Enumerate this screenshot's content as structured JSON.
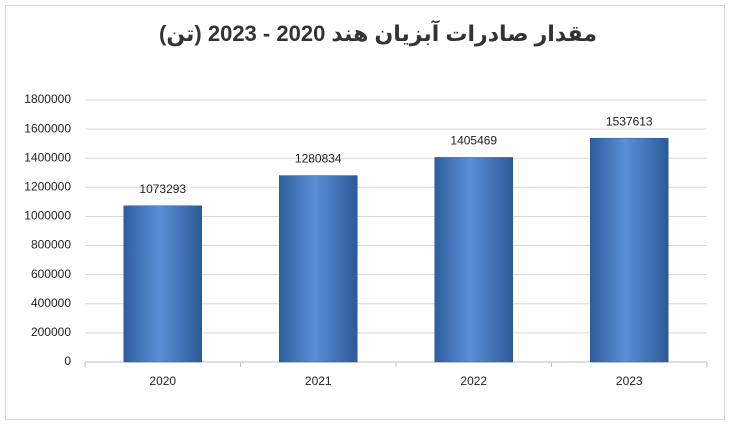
{
  "chart_data": {
    "type": "bar",
    "title": "مقدار صادرات آبزیان هند 2020 - 2023 (تن)",
    "categories": [
      "2020",
      "2021",
      "2022",
      "2023"
    ],
    "values": [
      1073293,
      1280834,
      1405469,
      1537613
    ],
    "color": "#4a7ec4",
    "ylim": [
      0,
      1800000
    ],
    "yticks": [
      0,
      200000,
      400000,
      600000,
      800000,
      1000000,
      1200000,
      1400000,
      1600000,
      1800000
    ],
    "grid": true
  }
}
